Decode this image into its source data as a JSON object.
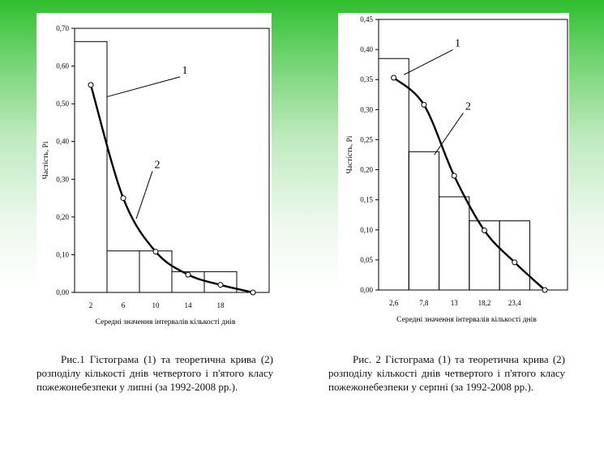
{
  "chart_data": [
    {
      "type": "bar",
      "ylabel": "Частість, Pi",
      "xlabel": "Середні значення інтервалів кількості днів",
      "ylim": [
        0,
        0.7
      ],
      "xlim": [
        0,
        24
      ],
      "y_ticks": [
        "0,00",
        "0,10",
        "0,20",
        "0,30",
        "0,40",
        "0,50",
        "0,60",
        "0,70"
      ],
      "x_ticks": [
        {
          "label": "2",
          "x": 2
        },
        {
          "label": "6",
          "x": 6
        },
        {
          "label": "10",
          "x": 10
        },
        {
          "label": "14",
          "x": 14
        },
        {
          "label": "18",
          "x": 18
        }
      ],
      "histogram": [
        {
          "x0": 0,
          "x1": 4,
          "value": 0.665
        },
        {
          "x0": 4,
          "x1": 8,
          "value": 0.11
        },
        {
          "x0": 8,
          "x1": 12,
          "value": 0.11
        },
        {
          "x0": 12,
          "x1": 16,
          "value": 0.055
        },
        {
          "x0": 16,
          "x1": 20,
          "value": 0.055
        }
      ],
      "curve": {
        "x": [
          2,
          6,
          10,
          14,
          18,
          22
        ],
        "y": [
          0.55,
          0.25,
          0.108,
          0.047,
          0.02,
          0.0
        ]
      },
      "annotations": [
        {
          "text": "1",
          "series": "histogram",
          "x": 13.6,
          "y": 0.58
        },
        {
          "text": "2",
          "series": "curve",
          "x": 10.2,
          "y": 0.33
        }
      ]
    },
    {
      "type": "bar",
      "ylabel": "Частість, Pi",
      "xlabel": "Середні значення інтервалів кількості днів",
      "ylim": [
        0,
        0.45
      ],
      "xlim": [
        0,
        32.5
      ],
      "y_ticks": [
        "0,00",
        "0,05",
        "0,10",
        "0,15",
        "0,20",
        "0,25",
        "0,30",
        "0,35",
        "0,40",
        "0,45"
      ],
      "x_ticks": [
        {
          "label": "2,6",
          "x": 2.6
        },
        {
          "label": "7,8",
          "x": 7.8
        },
        {
          "label": "13",
          "x": 13
        },
        {
          "label": "18,2",
          "x": 18.2
        },
        {
          "label": "23,4",
          "x": 23.4
        }
      ],
      "histogram": [
        {
          "x0": 0,
          "x1": 5.2,
          "value": 0.385
        },
        {
          "x0": 5.2,
          "x1": 10.4,
          "value": 0.23
        },
        {
          "x0": 10.4,
          "x1": 15.6,
          "value": 0.155
        },
        {
          "x0": 15.6,
          "x1": 20.8,
          "value": 0.115
        },
        {
          "x0": 20.8,
          "x1": 26,
          "value": 0.115
        }
      ],
      "curve": {
        "x": [
          2.6,
          7.8,
          13,
          18.2,
          23.4,
          28.6
        ],
        "y": [
          0.353,
          0.308,
          0.19,
          0.099,
          0.046,
          0.0
        ]
      },
      "annotations": [
        {
          "text": "1",
          "series": "histogram",
          "x": 13.6,
          "y": 0.405
        },
        {
          "text": "2",
          "series": "curve",
          "x": 15.4,
          "y": 0.3
        }
      ]
    }
  ],
  "captions": [
    "Рис.1 Гістограма (1) та теоретична крива (2) розподілу кількості днів четвертого і п'ятого класу пожежонебезпеки у липні (за 1992-2008 рр.).",
    "Рис. 2 Гістограма (1) та теоретична крива (2) розподілу кількості днів четвертого і п'ятого класу пожежонебезпеки у серпні (за 1992-2008 рр.)."
  ]
}
